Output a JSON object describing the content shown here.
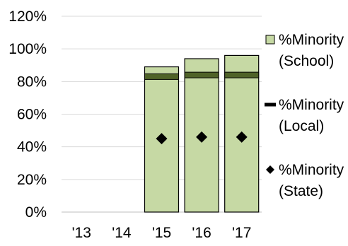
{
  "chart_data": {
    "type": "bar",
    "categories": [
      "'13",
      "'14",
      "'15",
      "'16",
      "'17"
    ],
    "series": [
      {
        "name": "%Minority (School)",
        "kind": "bar",
        "values": [
          null,
          null,
          89,
          94,
          96
        ],
        "color": "#c6d9a4"
      },
      {
        "name": "%Minority (Local)",
        "kind": "line-marker",
        "values": [
          null,
          null,
          83,
          84,
          84
        ],
        "color": "#4f6228"
      },
      {
        "name": "%Minority (State)",
        "kind": "diamond-marker",
        "values": [
          null,
          null,
          45,
          46,
          46
        ],
        "color": "#000000"
      }
    ],
    "legend": {
      "placement": "right",
      "entries": [
        {
          "lines": [
            "%Minority",
            "(School)"
          ],
          "marker": "square"
        },
        {
          "lines": [
            "%Minority",
            "(Local)"
          ],
          "marker": "dash"
        },
        {
          "lines": [
            "%Minority",
            "(State)"
          ],
          "marker": "diamond"
        }
      ]
    },
    "y_ticks": [
      "0%",
      "20%",
      "40%",
      "60%",
      "80%",
      "100%",
      "120%"
    ],
    "ylim": [
      0,
      120
    ],
    "grid": true,
    "title": "",
    "xlabel": "",
    "ylabel": ""
  }
}
